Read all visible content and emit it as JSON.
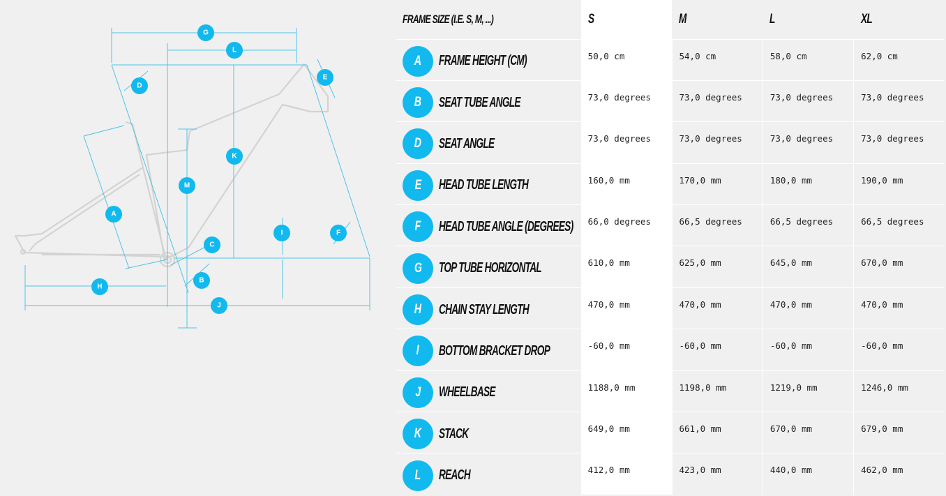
{
  "table": {
    "header": {
      "label": "FRAME SIZE (I.E. S, M, ...)",
      "sizes": [
        "S",
        "M",
        "L",
        "XL"
      ]
    },
    "rows": [
      {
        "key": "A",
        "label": "FRAME HEIGHT (CM)",
        "values": [
          "50,0 cm",
          "54,0 cm",
          "58,0 cm",
          "62,0 cm"
        ]
      },
      {
        "key": "B",
        "label": "SEAT TUBE ANGLE",
        "values": [
          "73,0 degrees",
          "73,0 degrees",
          "73,0 degrees",
          "73,0 degrees"
        ]
      },
      {
        "key": "D",
        "label": "SEAT ANGLE",
        "values": [
          "73,0 degrees",
          "73,0 degrees",
          "73,0 degrees",
          "73,0 degrees"
        ]
      },
      {
        "key": "E",
        "label": "HEAD TUBE LENGTH",
        "values": [
          "160,0 mm",
          "170,0 mm",
          "180,0 mm",
          "190,0 mm"
        ]
      },
      {
        "key": "F",
        "label": "HEAD TUBE ANGLE (DEGREES)",
        "values": [
          "66,0 degrees",
          "66,5 degrees",
          "66,5 degrees",
          "66,5 degrees"
        ]
      },
      {
        "key": "G",
        "label": "TOP TUBE HORIZONTAL",
        "values": [
          "610,0 mm",
          "625,0 mm",
          "645,0 mm",
          "670,0 mm"
        ]
      },
      {
        "key": "H",
        "label": "CHAIN STAY LENGTH",
        "values": [
          "470,0 mm",
          "470,0 mm",
          "470,0 mm",
          "470,0 mm"
        ]
      },
      {
        "key": "I",
        "label": "BOTTOM BRACKET DROP",
        "values": [
          "-60,0 mm",
          "-60,0 mm",
          "-60,0 mm",
          "-60,0 mm"
        ]
      },
      {
        "key": "J",
        "label": "WHEELBASE",
        "values": [
          "1188,0 mm",
          "1198,0 mm",
          "1219,0 mm",
          "1246,0 mm"
        ]
      },
      {
        "key": "K",
        "label": "STACK",
        "values": [
          "649,0 mm",
          "661,0 mm",
          "670,0 mm",
          "679,0 mm"
        ]
      },
      {
        "key": "L",
        "label": "REACH",
        "values": [
          "412,0 mm",
          "423,0 mm",
          "440,0 mm",
          "462,0 mm"
        ]
      }
    ]
  },
  "diagram": {
    "labels": [
      "G",
      "L",
      "D",
      "E",
      "K",
      "M",
      "A",
      "I",
      "F",
      "C",
      "B",
      "H",
      "J"
    ]
  },
  "colors": {
    "accent": "#12b9ee",
    "dimension_line": "#4fc3e8",
    "frame": "#d3d3d3",
    "background": "#f0f0f0",
    "highlight_column": "#ffffff"
  }
}
